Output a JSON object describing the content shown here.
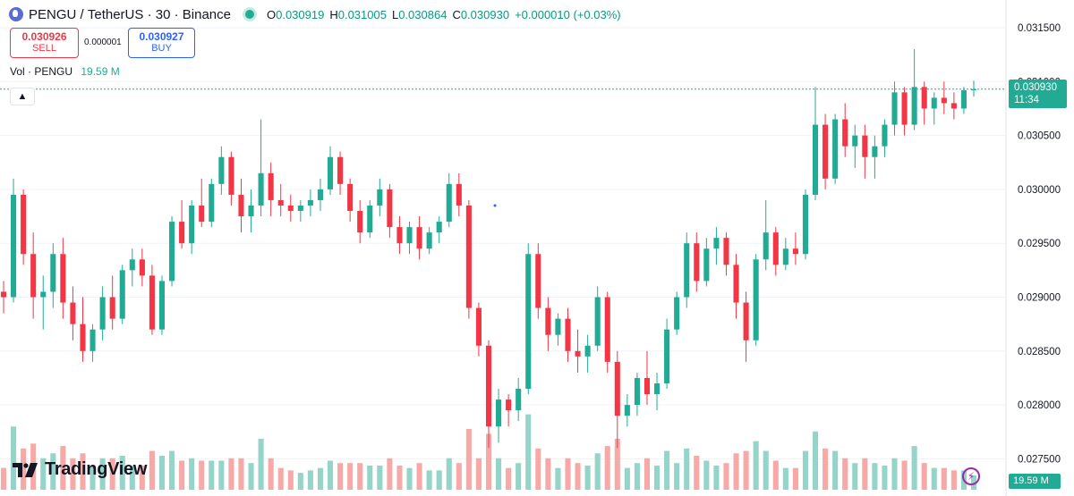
{
  "header": {
    "symbol": "PENGU",
    "separator1": "/",
    "quote": "TetherUS",
    "separator2": "·",
    "interval": "30",
    "separator3": "·",
    "exchange": "Binance",
    "ohlc": {
      "o_label": "O",
      "o_value": "0.030919",
      "h_label": "H",
      "h_value": "0.031005",
      "l_label": "L",
      "l_value": "0.030864",
      "c_label": "C",
      "c_value": "0.030930",
      "change": "+0.000010 (+0.03%)"
    }
  },
  "trade": {
    "sell_price": "0.030926",
    "sell_label": "SELL",
    "spread": "0.000001",
    "buy_price": "0.030927",
    "buy_label": "BUY"
  },
  "volume_legend": {
    "label": "Vol · PENGU",
    "value": "19.59 M"
  },
  "last_price": {
    "price": "0.030930",
    "countdown": "11:34"
  },
  "volume_tag": "19.59 M",
  "brand": "TradingView",
  "colors": {
    "up": "#22ab94",
    "down": "#f23645",
    "up_vol": "#94d4c9",
    "down_vol": "#f7a9a7",
    "grid": "#f0f3fa",
    "last_line": "#22ab94"
  },
  "chart_data": {
    "type": "candlestick",
    "y_ticks": [
      "0.031500",
      "0.031000",
      "0.030500",
      "0.030000",
      "0.029500",
      "0.029000",
      "0.028500",
      "0.028000",
      "0.027500"
    ],
    "ylim": [
      0.02738,
      0.03165
    ],
    "last_price": 0.03093,
    "candles_approx": [
      [
        0.02905,
        0.02915,
        0.02885,
        0.029
      ],
      [
        0.029,
        0.0301,
        0.02895,
        0.02995
      ],
      [
        0.02995,
        0.03,
        0.0293,
        0.0294
      ],
      [
        0.0294,
        0.0296,
        0.0288,
        0.029
      ],
      [
        0.029,
        0.0292,
        0.0287,
        0.02905
      ],
      [
        0.02905,
        0.0295,
        0.0289,
        0.0294
      ],
      [
        0.0294,
        0.02955,
        0.0288,
        0.02895
      ],
      [
        0.02895,
        0.0291,
        0.0286,
        0.02875
      ],
      [
        0.02875,
        0.029,
        0.0284,
        0.0285
      ],
      [
        0.0285,
        0.02875,
        0.0284,
        0.0287
      ],
      [
        0.0287,
        0.0291,
        0.0286,
        0.029
      ],
      [
        0.029,
        0.0292,
        0.0287,
        0.0288
      ],
      [
        0.0288,
        0.0293,
        0.02875,
        0.02925
      ],
      [
        0.02925,
        0.02945,
        0.0291,
        0.02935
      ],
      [
        0.02935,
        0.02945,
        0.0291,
        0.0292
      ],
      [
        0.0292,
        0.0293,
        0.02865,
        0.0287
      ],
      [
        0.0287,
        0.0292,
        0.02865,
        0.02915
      ],
      [
        0.02915,
        0.02975,
        0.0291,
        0.0297
      ],
      [
        0.0297,
        0.0299,
        0.02945,
        0.0295
      ],
      [
        0.0295,
        0.0299,
        0.0294,
        0.02985
      ],
      [
        0.02985,
        0.0301,
        0.02965,
        0.0297
      ],
      [
        0.0297,
        0.0301,
        0.02965,
        0.03005
      ],
      [
        0.03005,
        0.0304,
        0.02995,
        0.0303
      ],
      [
        0.0303,
        0.03035,
        0.02985,
        0.02995
      ],
      [
        0.02995,
        0.0301,
        0.0296,
        0.02975
      ],
      [
        0.02975,
        0.03,
        0.0296,
        0.02985
      ],
      [
        0.02985,
        0.03065,
        0.02975,
        0.03015
      ],
      [
        0.03015,
        0.03025,
        0.02975,
        0.0299
      ],
      [
        0.0299,
        0.03005,
        0.02975,
        0.02985
      ],
      [
        0.02985,
        0.02995,
        0.0297,
        0.0298
      ],
      [
        0.0298,
        0.0299,
        0.0297,
        0.02985
      ],
      [
        0.02985,
        0.03,
        0.02975,
        0.0299
      ],
      [
        0.0299,
        0.0301,
        0.0298,
        0.03
      ],
      [
        0.03,
        0.0304,
        0.02995,
        0.0303
      ],
      [
        0.0303,
        0.03035,
        0.02995,
        0.03005
      ],
      [
        0.03005,
        0.0301,
        0.0297,
        0.0298
      ],
      [
        0.0298,
        0.0299,
        0.0295,
        0.0296
      ],
      [
        0.0296,
        0.0299,
        0.02955,
        0.02985
      ],
      [
        0.02985,
        0.0301,
        0.02975,
        0.03
      ],
      [
        0.03,
        0.03005,
        0.02955,
        0.02965
      ],
      [
        0.02965,
        0.02975,
        0.0294,
        0.0295
      ],
      [
        0.0295,
        0.0297,
        0.0294,
        0.02965
      ],
      [
        0.02965,
        0.02975,
        0.02935,
        0.02945
      ],
      [
        0.02945,
        0.02965,
        0.0294,
        0.0296
      ],
      [
        0.0296,
        0.02975,
        0.0295,
        0.0297
      ],
      [
        0.0297,
        0.03015,
        0.02965,
        0.03005
      ],
      [
        0.03005,
        0.03015,
        0.02975,
        0.02985
      ],
      [
        0.02985,
        0.0299,
        0.0288,
        0.0289
      ],
      [
        0.0289,
        0.02895,
        0.02845,
        0.02855
      ],
      [
        0.02855,
        0.0286,
        0.0276,
        0.0278
      ],
      [
        0.0278,
        0.02815,
        0.02765,
        0.02805
      ],
      [
        0.02805,
        0.0281,
        0.0278,
        0.02795
      ],
      [
        0.02795,
        0.02825,
        0.02785,
        0.02815
      ],
      [
        0.02815,
        0.0295,
        0.0281,
        0.0294
      ],
      [
        0.0294,
        0.0295,
        0.0288,
        0.0289
      ],
      [
        0.0289,
        0.029,
        0.0285,
        0.02865
      ],
      [
        0.02865,
        0.02885,
        0.02855,
        0.0288
      ],
      [
        0.0288,
        0.0289,
        0.0284,
        0.0285
      ],
      [
        0.0285,
        0.0287,
        0.0283,
        0.02845
      ],
      [
        0.02845,
        0.02865,
        0.0283,
        0.02855
      ],
      [
        0.02855,
        0.0291,
        0.0285,
        0.029
      ],
      [
        0.029,
        0.02905,
        0.0283,
        0.0284
      ],
      [
        0.0284,
        0.0285,
        0.0276,
        0.0279
      ],
      [
        0.0279,
        0.0281,
        0.0278,
        0.028
      ],
      [
        0.028,
        0.0283,
        0.0279,
        0.02825
      ],
      [
        0.02825,
        0.0285,
        0.028,
        0.0281
      ],
      [
        0.0281,
        0.0283,
        0.02795,
        0.0282
      ],
      [
        0.0282,
        0.0288,
        0.02815,
        0.0287
      ],
      [
        0.0287,
        0.02905,
        0.02865,
        0.029
      ],
      [
        0.029,
        0.0296,
        0.0289,
        0.0295
      ],
      [
        0.0295,
        0.0296,
        0.02905,
        0.02915
      ],
      [
        0.02915,
        0.02955,
        0.0291,
        0.02945
      ],
      [
        0.02945,
        0.02965,
        0.0293,
        0.02955
      ],
      [
        0.02955,
        0.0296,
        0.0292,
        0.0293
      ],
      [
        0.0293,
        0.0294,
        0.0288,
        0.02895
      ],
      [
        0.02895,
        0.02905,
        0.0284,
        0.0286
      ],
      [
        0.0286,
        0.0294,
        0.02855,
        0.02935
      ],
      [
        0.02935,
        0.0299,
        0.02925,
        0.0296
      ],
      [
        0.0296,
        0.02965,
        0.0292,
        0.0293
      ],
      [
        0.0293,
        0.02955,
        0.02925,
        0.02945
      ],
      [
        0.02945,
        0.0296,
        0.0293,
        0.0294
      ],
      [
        0.0294,
        0.03,
        0.02935,
        0.02995
      ],
      [
        0.02995,
        0.03095,
        0.0299,
        0.0306
      ],
      [
        0.0306,
        0.0307,
        0.03,
        0.0301
      ],
      [
        0.0301,
        0.0307,
        0.03005,
        0.03065
      ],
      [
        0.03065,
        0.0308,
        0.0303,
        0.0304
      ],
      [
        0.0304,
        0.0306,
        0.0302,
        0.0305
      ],
      [
        0.0305,
        0.0306,
        0.0301,
        0.0303
      ],
      [
        0.0303,
        0.0305,
        0.0301,
        0.0304
      ],
      [
        0.0304,
        0.03065,
        0.0303,
        0.0306
      ],
      [
        0.0306,
        0.031,
        0.0305,
        0.0309
      ],
      [
        0.0309,
        0.03095,
        0.0305,
        0.0306
      ],
      [
        0.0306,
        0.0313,
        0.03055,
        0.03095
      ],
      [
        0.03095,
        0.031,
        0.0306,
        0.03075
      ],
      [
        0.03075,
        0.0309,
        0.0306,
        0.03085
      ],
      [
        0.03085,
        0.031,
        0.0307,
        0.0308
      ],
      [
        0.0308,
        0.0309,
        0.03065,
        0.03075
      ],
      [
        0.03075,
        0.03095,
        0.0307,
        0.03092
      ],
      [
        0.03092,
        0.03101,
        0.03086,
        0.03093
      ]
    ]
  }
}
